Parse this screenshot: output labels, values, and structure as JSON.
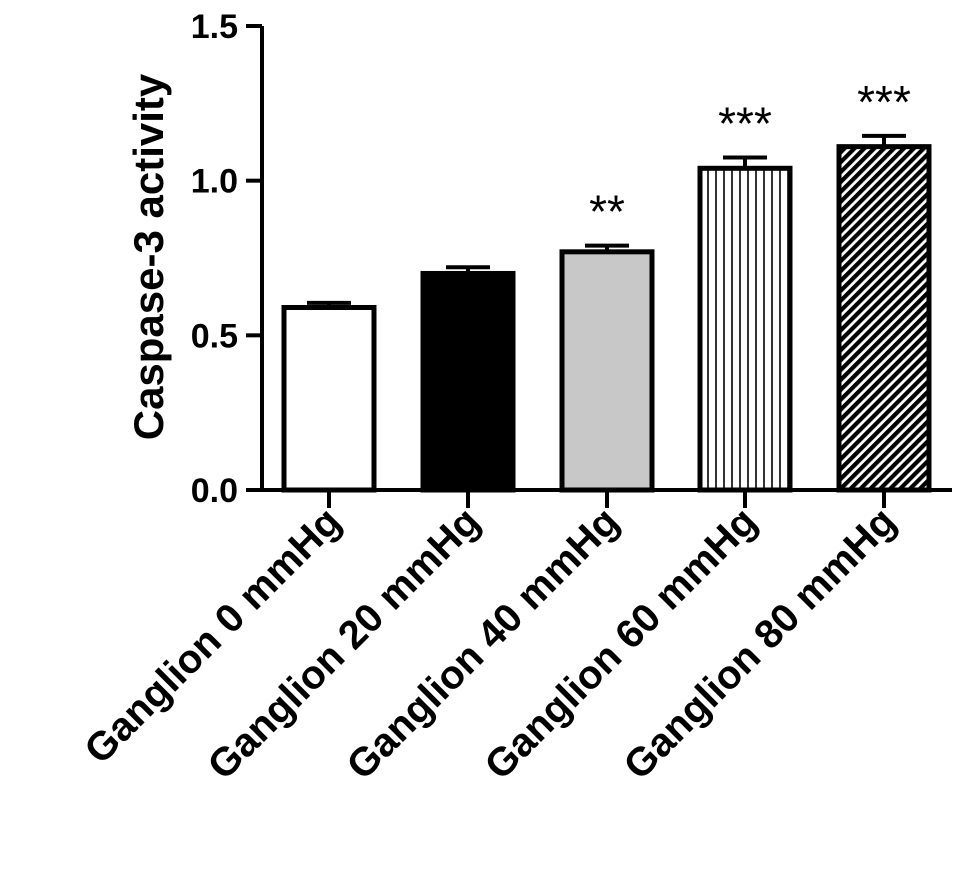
{
  "chart_data": {
    "type": "bar",
    "title": "",
    "xlabel": "",
    "ylabel": "Caspase-3 activity",
    "ylim": [
      0,
      1.5
    ],
    "yticks": [
      0.0,
      0.5,
      1.0,
      1.5
    ],
    "ytick_labels": [
      "0.0",
      "0.5",
      "1.0",
      "1.5"
    ],
    "categories": [
      "Ganglion 0 mmHg",
      "Ganglion 20 mmHg",
      "Ganglion 40 mmHg",
      "Ganglion 60 mmHg",
      "Ganglion 80 mmHg"
    ],
    "values": [
      0.59,
      0.7,
      0.77,
      1.04,
      1.11
    ],
    "errors": [
      0.015,
      0.02,
      0.02,
      0.035,
      0.035
    ],
    "significance": [
      "",
      "",
      "**",
      "***",
      "***"
    ],
    "bar_fills": [
      "white",
      "black",
      "gray",
      "vertical-stripes",
      "diagonal-hatch"
    ],
    "colors": {
      "gray_fill": "#c8c8c8",
      "stroke": "#000000",
      "white": "#ffffff",
      "black": "#000000"
    },
    "grid": false,
    "legend": "none"
  }
}
